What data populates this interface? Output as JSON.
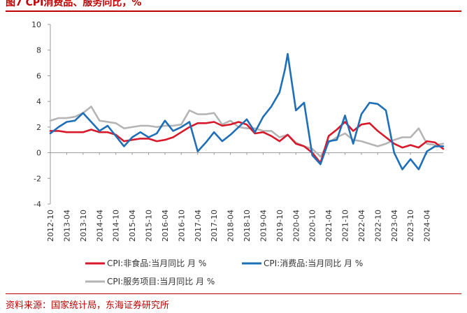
{
  "title": "图7 CPI消费品、服务同比，%",
  "source": "资料来源：国家统计局，东海证券研究所",
  "colors": {
    "brand": "#C00000",
    "axis": "#999999"
  },
  "chart_data": {
    "type": "line",
    "title": "图7 CPI消费品、服务同比，%",
    "xlabel": "",
    "ylabel": "",
    "ylim": [
      -4,
      10
    ],
    "yticks": [
      -4,
      -2,
      0,
      2,
      4,
      6,
      8,
      10
    ],
    "x_tick_labels": [
      "2012-10",
      "2013-04",
      "2013-10",
      "2014-04",
      "2014-10",
      "2015-04",
      "2015-10",
      "2016-04",
      "2016-10",
      "2017-04",
      "2017-10",
      "2018-04",
      "2018-10",
      "2019-04",
      "2019-10",
      "2020-04",
      "2020-10",
      "2021-04",
      "2021-10",
      "2022-04",
      "2022-10",
      "2023-04",
      "2023-10",
      "2024-04"
    ],
    "grid": false,
    "legend_position": "bottom",
    "series": [
      {
        "name": "CPI:非食品:当月同比 月 %",
        "color": "#D7192B",
        "points": [
          [
            "2012-10",
            1.7
          ],
          [
            "2013-01",
            1.7
          ],
          [
            "2013-04",
            1.6
          ],
          [
            "2013-07",
            1.6
          ],
          [
            "2013-10",
            1.6
          ],
          [
            "2014-01",
            1.8
          ],
          [
            "2014-04",
            1.6
          ],
          [
            "2014-07",
            1.6
          ],
          [
            "2014-10",
            1.4
          ],
          [
            "2015-01",
            0.9
          ],
          [
            "2015-04",
            1.0
          ],
          [
            "2015-07",
            1.1
          ],
          [
            "2015-10",
            1.1
          ],
          [
            "2016-01",
            0.9
          ],
          [
            "2016-04",
            1.0
          ],
          [
            "2016-07",
            1.2
          ],
          [
            "2016-10",
            1.6
          ],
          [
            "2017-01",
            2.0
          ],
          [
            "2017-04",
            2.3
          ],
          [
            "2017-07",
            2.3
          ],
          [
            "2017-10",
            2.4
          ],
          [
            "2018-01",
            2.1
          ],
          [
            "2018-04",
            2.2
          ],
          [
            "2018-07",
            2.4
          ],
          [
            "2018-10",
            2.2
          ],
          [
            "2019-01",
            1.5
          ],
          [
            "2019-04",
            1.6
          ],
          [
            "2019-07",
            1.3
          ],
          [
            "2019-10",
            0.9
          ],
          [
            "2020-01",
            1.4
          ],
          [
            "2020-04",
            0.7
          ],
          [
            "2020-07",
            0.5
          ],
          [
            "2020-10",
            0.0
          ],
          [
            "2021-01",
            -0.8
          ],
          [
            "2021-04",
            1.3
          ],
          [
            "2021-07",
            1.8
          ],
          [
            "2021-10",
            2.4
          ],
          [
            "2022-01",
            1.7
          ],
          [
            "2022-04",
            2.2
          ],
          [
            "2022-07",
            2.3
          ],
          [
            "2022-10",
            1.7
          ],
          [
            "2023-01",
            1.2
          ],
          [
            "2023-04",
            0.7
          ],
          [
            "2023-07",
            0.4
          ],
          [
            "2023-10",
            0.6
          ],
          [
            "2024-01",
            0.4
          ],
          [
            "2024-04",
            0.9
          ],
          [
            "2024-07",
            0.8
          ],
          [
            "2024-10",
            0.3
          ]
        ]
      },
      {
        "name": "CPI:消费品:当月同比 月 %",
        "color": "#1E6FB8",
        "points": [
          [
            "2012-10",
            1.5
          ],
          [
            "2013-01",
            2.0
          ],
          [
            "2013-04",
            2.4
          ],
          [
            "2013-07",
            2.5
          ],
          [
            "2013-10",
            3.1
          ],
          [
            "2014-01",
            2.4
          ],
          [
            "2014-04",
            1.7
          ],
          [
            "2014-07",
            2.1
          ],
          [
            "2014-10",
            1.3
          ],
          [
            "2015-01",
            0.5
          ],
          [
            "2015-04",
            1.2
          ],
          [
            "2015-07",
            1.6
          ],
          [
            "2015-10",
            1.2
          ],
          [
            "2016-01",
            1.5
          ],
          [
            "2016-04",
            2.5
          ],
          [
            "2016-07",
            1.7
          ],
          [
            "2016-10",
            2.0
          ],
          [
            "2017-01",
            2.4
          ],
          [
            "2017-04",
            0.1
          ],
          [
            "2017-07",
            0.8
          ],
          [
            "2017-10",
            1.6
          ],
          [
            "2018-01",
            0.9
          ],
          [
            "2018-04",
            1.4
          ],
          [
            "2018-07",
            2.0
          ],
          [
            "2018-10",
            2.6
          ],
          [
            "2019-01",
            1.6
          ],
          [
            "2019-04",
            2.8
          ],
          [
            "2019-07",
            3.6
          ],
          [
            "2019-10",
            4.7
          ],
          [
            "2019-12",
            6.5
          ],
          [
            "2020-01",
            7.7
          ],
          [
            "2020-04",
            3.3
          ],
          [
            "2020-07",
            3.9
          ],
          [
            "2020-10",
            -0.2
          ],
          [
            "2021-01",
            -0.9
          ],
          [
            "2021-04",
            0.9
          ],
          [
            "2021-07",
            1.0
          ],
          [
            "2021-10",
            2.9
          ],
          [
            "2022-01",
            0.7
          ],
          [
            "2022-04",
            3.0
          ],
          [
            "2022-07",
            3.9
          ],
          [
            "2022-10",
            3.8
          ],
          [
            "2023-01",
            3.3
          ],
          [
            "2023-04",
            0.0
          ],
          [
            "2023-07",
            -1.3
          ],
          [
            "2023-10",
            -0.5
          ],
          [
            "2024-01",
            -1.3
          ],
          [
            "2024-04",
            0.1
          ],
          [
            "2024-07",
            0.5
          ],
          [
            "2024-10",
            0.5
          ]
        ]
      },
      {
        "name": "CPI:服务项目:当月同比 月 %",
        "color": "#B4B4B4",
        "points": [
          [
            "2012-10",
            2.5
          ],
          [
            "2013-01",
            2.7
          ],
          [
            "2013-04",
            2.7
          ],
          [
            "2013-07",
            2.8
          ],
          [
            "2013-10",
            3.1
          ],
          [
            "2014-01",
            3.6
          ],
          [
            "2014-04",
            2.5
          ],
          [
            "2014-07",
            2.4
          ],
          [
            "2014-10",
            2.3
          ],
          [
            "2015-01",
            1.9
          ],
          [
            "2015-04",
            2.0
          ],
          [
            "2015-07",
            2.1
          ],
          [
            "2015-10",
            2.1
          ],
          [
            "2016-01",
            2.0
          ],
          [
            "2016-04",
            2.1
          ],
          [
            "2016-07",
            2.1
          ],
          [
            "2016-10",
            2.2
          ],
          [
            "2017-01",
            3.3
          ],
          [
            "2017-04",
            3.0
          ],
          [
            "2017-07",
            3.0
          ],
          [
            "2017-10",
            3.1
          ],
          [
            "2018-01",
            2.2
          ],
          [
            "2018-04",
            2.5
          ],
          [
            "2018-07",
            2.0
          ],
          [
            "2018-10",
            1.9
          ],
          [
            "2019-01",
            1.9
          ],
          [
            "2019-04",
            1.7
          ],
          [
            "2019-07",
            1.7
          ],
          [
            "2019-10",
            1.2
          ],
          [
            "2020-01",
            1.4
          ],
          [
            "2020-04",
            0.8
          ],
          [
            "2020-07",
            0.5
          ],
          [
            "2020-10",
            0.3
          ],
          [
            "2021-01",
            -0.3
          ],
          [
            "2021-04",
            0.8
          ],
          [
            "2021-07",
            1.2
          ],
          [
            "2021-10",
            1.5
          ],
          [
            "2022-01",
            1.0
          ],
          [
            "2022-04",
            0.9
          ],
          [
            "2022-07",
            0.7
          ],
          [
            "2022-10",
            0.5
          ],
          [
            "2023-01",
            0.7
          ],
          [
            "2023-04",
            1.0
          ],
          [
            "2023-07",
            1.2
          ],
          [
            "2023-10",
            1.2
          ],
          [
            "2024-01",
            1.9
          ],
          [
            "2024-04",
            0.7
          ],
          [
            "2024-07",
            0.6
          ],
          [
            "2024-10",
            0.7
          ]
        ]
      }
    ]
  }
}
